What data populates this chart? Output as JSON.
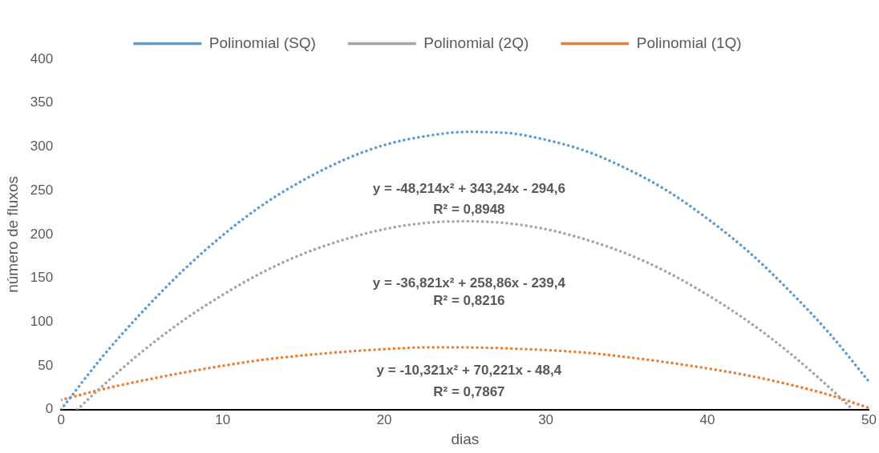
{
  "chart_data": {
    "type": "line",
    "xlabel": "dias",
    "ylabel": "número de fluxos",
    "xlim": [
      0,
      50
    ],
    "xticks": [
      0,
      10,
      20,
      30,
      40,
      50
    ],
    "ylim": [
      0,
      400
    ],
    "yticks": [
      0,
      50,
      100,
      150,
      200,
      250,
      300,
      350,
      400
    ],
    "grid": false,
    "legend": "top",
    "marker": "none",
    "line_style": "dotted",
    "series": [
      {
        "name": "Polinomial (SQ)",
        "color": "#5b9bd5",
        "x": [
          0,
          2.5,
          5,
          7.5,
          10,
          12.5,
          15,
          17.5,
          20,
          22.5,
          25,
          27.5,
          30,
          32.5,
          35,
          37.5,
          40,
          42.5,
          45,
          47.5,
          50
        ],
        "values": [
          0,
          59,
          111,
          158,
          199,
          234,
          262,
          285,
          302,
          312,
          317,
          316,
          308,
          295,
          275,
          250,
          218,
          181,
          137,
          88,
          32
        ]
      },
      {
        "name": "Polinomial (2Q)",
        "color": "#a5a5a5",
        "x": [
          1,
          2.5,
          5,
          7.5,
          10,
          12.5,
          15,
          17.5,
          20,
          22.5,
          25,
          27.5,
          30,
          32.5,
          35,
          37.5,
          40,
          42.5,
          45,
          47.5,
          49
        ],
        "values": [
          0,
          26,
          66,
          101,
          131,
          157,
          178,
          194,
          206,
          213,
          215,
          213,
          206,
          194,
          178,
          157,
          131,
          101,
          66,
          26,
          0
        ]
      },
      {
        "name": "Polinomial (1Q)",
        "color": "#ed7d31",
        "x": [
          0,
          2.5,
          5,
          7.5,
          10,
          12.5,
          15,
          17.5,
          20,
          22.5,
          25,
          27.5,
          30,
          32.5,
          35,
          37.5,
          40,
          42.5,
          45,
          47.5,
          50
        ],
        "values": [
          11,
          23,
          33,
          42,
          50,
          57,
          62,
          66,
          69,
          71,
          71,
          70,
          68,
          65,
          60,
          54,
          47,
          39,
          29,
          17,
          2
        ]
      }
    ],
    "annotations": [
      "y = -48,214x² + 343,24x - 294,6",
      "R² = 0,8948",
      "y = -36,821x² + 258,86x - 239,4",
      "R² = 0,8216",
      "y = -10,321x² + 70,221x - 48,4",
      "R² = 0,7867"
    ]
  }
}
